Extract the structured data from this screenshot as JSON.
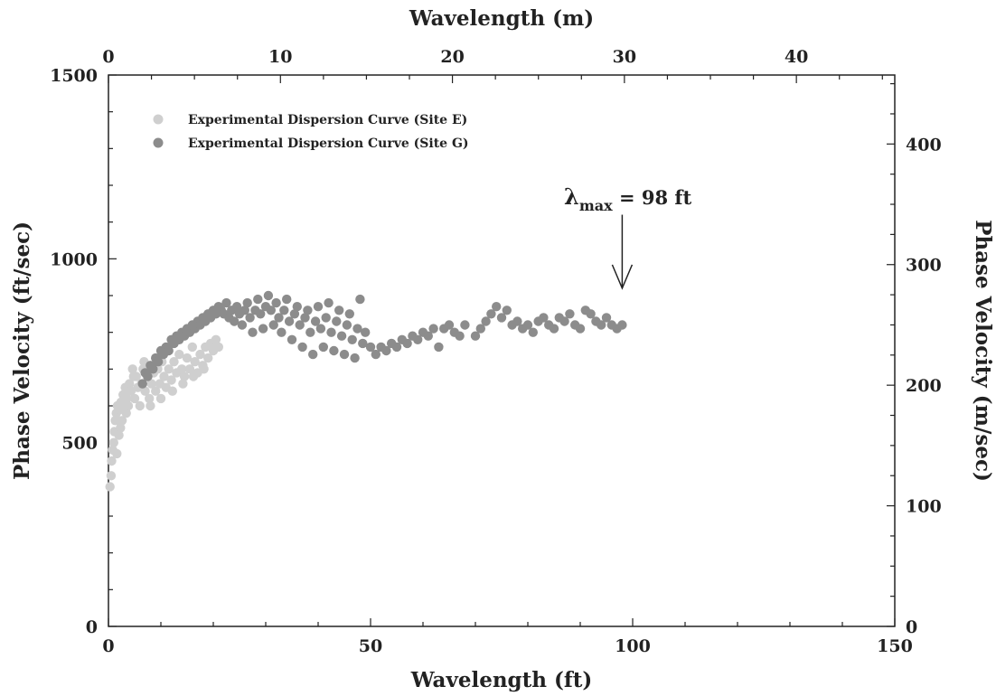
{
  "chart_data": {
    "type": "scatter",
    "xlabel": "Wavelength (ft)",
    "ylabel": "Phase Velocity (ft/sec)",
    "x2label": "Wavelength (m)",
    "y2label": "Phase Velocity (m/sec)",
    "xlim": [
      0,
      150
    ],
    "ylim": [
      0,
      1500
    ],
    "x2lim": [
      0,
      45.72
    ],
    "y2lim": [
      0,
      457.2
    ],
    "x_ticks": [
      "0",
      "50",
      "100",
      "150"
    ],
    "y_ticks": [
      "0",
      "500",
      "1000",
      "1500"
    ],
    "x2_ticks": [
      "0",
      "10",
      "20",
      "30",
      "40"
    ],
    "y2_ticks": [
      "0",
      "100",
      "200",
      "300",
      "400"
    ],
    "grid": false,
    "legend_position": "top-left",
    "colors": {
      "site_e": "#cfcfcf",
      "site_g": "#8c8c8c"
    },
    "series": [
      {
        "name": "Experimental Dispersion Curve (Site E)",
        "marker": "circle",
        "points": [
          [
            0.3,
            380
          ],
          [
            0.5,
            410
          ],
          [
            0.6,
            450
          ],
          [
            0.8,
            480
          ],
          [
            1.0,
            500
          ],
          [
            1.1,
            530
          ],
          [
            1.3,
            560
          ],
          [
            1.5,
            580
          ],
          [
            1.7,
            600
          ],
          [
            1.9,
            560
          ],
          [
            2.0,
            520
          ],
          [
            2.2,
            590
          ],
          [
            2.4,
            610
          ],
          [
            2.6,
            560
          ],
          [
            2.8,
            630
          ],
          [
            3.0,
            600
          ],
          [
            3.2,
            650
          ],
          [
            3.5,
            620
          ],
          [
            3.8,
            600
          ],
          [
            4.0,
            660
          ],
          [
            4.3,
            640
          ],
          [
            4.6,
            700
          ],
          [
            5.0,
            620
          ],
          [
            5.3,
            680
          ],
          [
            5.6,
            650
          ],
          [
            6.0,
            600
          ],
          [
            6.3,
            660
          ],
          [
            6.6,
            700
          ],
          [
            7.0,
            640
          ],
          [
            7.4,
            680
          ],
          [
            7.8,
            620
          ],
          [
            8.2,
            660
          ],
          [
            8.6,
            690
          ],
          [
            9.0,
            640
          ],
          [
            9.4,
            700
          ],
          [
            9.8,
            660
          ],
          [
            10.2,
            720
          ],
          [
            10.6,
            680
          ],
          [
            11.0,
            650
          ],
          [
            11.5,
            700
          ],
          [
            12.0,
            670
          ],
          [
            12.5,
            720
          ],
          [
            13.0,
            690
          ],
          [
            13.5,
            740
          ],
          [
            14.0,
            700
          ],
          [
            14.5,
            680
          ],
          [
            15.0,
            730
          ],
          [
            15.5,
            700
          ],
          [
            16.0,
            760
          ],
          [
            16.5,
            720
          ],
          [
            17.0,
            690
          ],
          [
            17.5,
            740
          ],
          [
            18.0,
            710
          ],
          [
            18.5,
            760
          ],
          [
            19.0,
            730
          ],
          [
            19.5,
            770
          ],
          [
            20.0,
            750
          ],
          [
            20.5,
            780
          ],
          [
            21.0,
            760
          ],
          [
            6.8,
            720
          ],
          [
            8.0,
            600
          ],
          [
            10.0,
            620
          ],
          [
            12.2,
            640
          ],
          [
            14.2,
            660
          ],
          [
            16.2,
            680
          ],
          [
            18.2,
            700
          ],
          [
            4.8,
            680
          ],
          [
            3.4,
            580
          ],
          [
            2.3,
            540
          ],
          [
            1.6,
            470
          ]
        ]
      },
      {
        "name": "Experimental Dispersion Curve (Site G)",
        "marker": "circle",
        "points": [
          [
            6.5,
            660
          ],
          [
            7.0,
            690
          ],
          [
            7.5,
            680
          ],
          [
            8.0,
            710
          ],
          [
            8.5,
            700
          ],
          [
            9.0,
            730
          ],
          [
            9.5,
            720
          ],
          [
            10.0,
            750
          ],
          [
            10.5,
            740
          ],
          [
            11.0,
            760
          ],
          [
            11.5,
            750
          ],
          [
            12.0,
            780
          ],
          [
            12.5,
            770
          ],
          [
            13.0,
            790
          ],
          [
            13.5,
            780
          ],
          [
            14.0,
            800
          ],
          [
            14.5,
            790
          ],
          [
            15.0,
            810
          ],
          [
            15.5,
            800
          ],
          [
            16.0,
            820
          ],
          [
            16.5,
            810
          ],
          [
            17.0,
            830
          ],
          [
            17.5,
            820
          ],
          [
            18.0,
            840
          ],
          [
            18.5,
            830
          ],
          [
            19.0,
            850
          ],
          [
            19.5,
            840
          ],
          [
            20.0,
            860
          ],
          [
            20.5,
            850
          ],
          [
            21.0,
            870
          ],
          [
            21.5,
            860
          ],
          [
            22.0,
            850
          ],
          [
            22.5,
            880
          ],
          [
            23.0,
            840
          ],
          [
            23.5,
            860
          ],
          [
            24.0,
            830
          ],
          [
            24.5,
            870
          ],
          [
            25.0,
            850
          ],
          [
            25.5,
            820
          ],
          [
            26.0,
            860
          ],
          [
            26.5,
            880
          ],
          [
            27.0,
            840
          ],
          [
            27.5,
            800
          ],
          [
            28.0,
            860
          ],
          [
            28.5,
            890
          ],
          [
            29.0,
            850
          ],
          [
            29.5,
            810
          ],
          [
            30.0,
            870
          ],
          [
            30.5,
            900
          ],
          [
            31.0,
            860
          ],
          [
            31.5,
            820
          ],
          [
            32.0,
            880
          ],
          [
            32.5,
            840
          ],
          [
            33.0,
            800
          ],
          [
            33.5,
            860
          ],
          [
            34.0,
            890
          ],
          [
            34.5,
            830
          ],
          [
            35.0,
            780
          ],
          [
            35.5,
            850
          ],
          [
            36.0,
            870
          ],
          [
            36.5,
            820
          ],
          [
            37.0,
            760
          ],
          [
            37.5,
            840
          ],
          [
            38.0,
            860
          ],
          [
            38.5,
            800
          ],
          [
            39.0,
            740
          ],
          [
            39.5,
            830
          ],
          [
            40.0,
            870
          ],
          [
            40.5,
            810
          ],
          [
            41.0,
            760
          ],
          [
            41.5,
            840
          ],
          [
            42.0,
            880
          ],
          [
            42.5,
            800
          ],
          [
            43.0,
            750
          ],
          [
            43.5,
            830
          ],
          [
            44.0,
            860
          ],
          [
            44.5,
            790
          ],
          [
            45.0,
            740
          ],
          [
            45.5,
            820
          ],
          [
            46.0,
            850
          ],
          [
            46.5,
            780
          ],
          [
            47.0,
            730
          ],
          [
            47.5,
            810
          ],
          [
            48.0,
            890
          ],
          [
            48.5,
            770
          ],
          [
            49.0,
            800
          ],
          [
            50.0,
            760
          ],
          [
            51.0,
            740
          ],
          [
            52.0,
            760
          ],
          [
            53.0,
            750
          ],
          [
            54.0,
            770
          ],
          [
            55.0,
            760
          ],
          [
            56.0,
            780
          ],
          [
            57.0,
            770
          ],
          [
            58.0,
            790
          ],
          [
            59.0,
            780
          ],
          [
            60.0,
            800
          ],
          [
            61.0,
            790
          ],
          [
            62.0,
            810
          ],
          [
            63.0,
            760
          ],
          [
            64.0,
            810
          ],
          [
            65.0,
            820
          ],
          [
            66.0,
            800
          ],
          [
            67.0,
            790
          ],
          [
            68.0,
            820
          ],
          [
            70.0,
            790
          ],
          [
            71.0,
            810
          ],
          [
            72.0,
            830
          ],
          [
            73.0,
            850
          ],
          [
            74.0,
            870
          ],
          [
            75.0,
            840
          ],
          [
            76.0,
            860
          ],
          [
            77.0,
            820
          ],
          [
            78.0,
            830
          ],
          [
            79.0,
            810
          ],
          [
            80.0,
            820
          ],
          [
            81.0,
            800
          ],
          [
            82.0,
            830
          ],
          [
            83.0,
            840
          ],
          [
            84.0,
            820
          ],
          [
            85.0,
            810
          ],
          [
            86.0,
            840
          ],
          [
            87.0,
            830
          ],
          [
            88.0,
            850
          ],
          [
            89.0,
            820
          ],
          [
            90.0,
            810
          ],
          [
            91.0,
            860
          ],
          [
            92.0,
            850
          ],
          [
            93.0,
            830
          ],
          [
            94.0,
            820
          ],
          [
            95.0,
            840
          ],
          [
            96.0,
            820
          ],
          [
            97.0,
            810
          ],
          [
            98.0,
            820
          ]
        ]
      }
    ],
    "annotations": [
      {
        "text": "λ",
        "subscript": "max",
        "suffix": " = 98 ft",
        "arrow_x": 98,
        "arrow_y_from": 1120,
        "arrow_y_to": 920
      }
    ]
  }
}
